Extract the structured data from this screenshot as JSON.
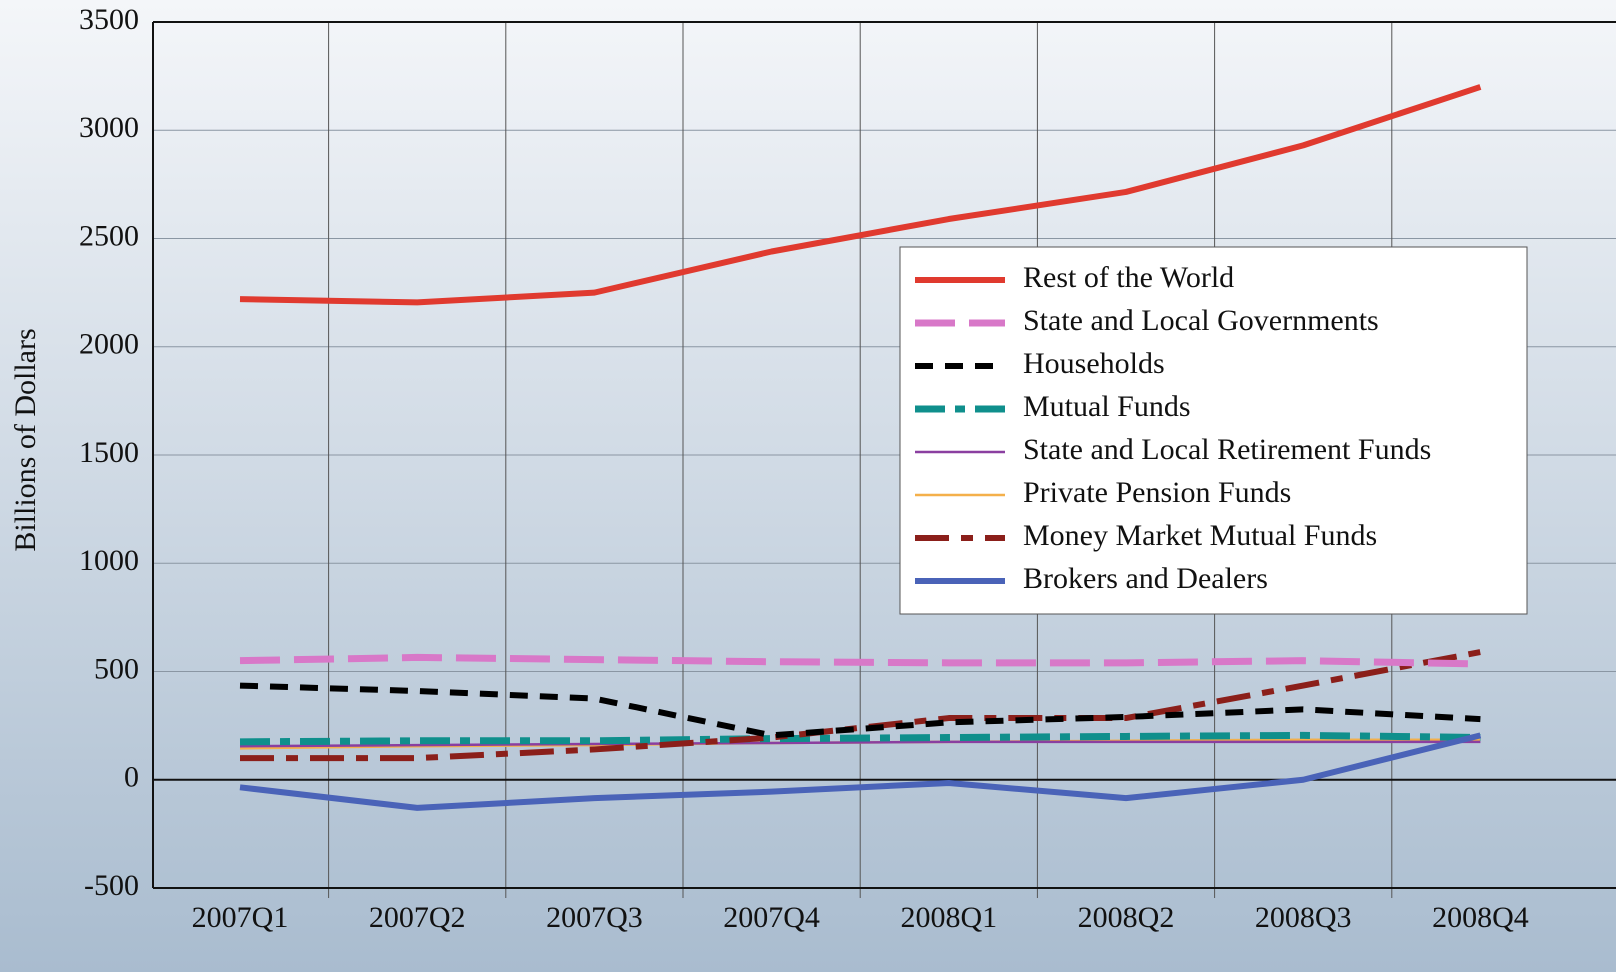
{
  "chart_data": {
    "type": "line",
    "y_label": "Billions of Dollars",
    "categories": [
      "2007Q1",
      "2007Q2",
      "2007Q3",
      "2007Q4",
      "2008Q1",
      "2008Q2",
      "2008Q3",
      "2008Q4"
    ],
    "ylim": [
      -500,
      3500
    ],
    "yticks": [
      -500,
      0,
      500,
      1000,
      1500,
      2000,
      2500,
      3000,
      3500
    ],
    "grid": true,
    "legend": "upper right",
    "series": [
      {
        "name": "Rest of the World",
        "color": "#e03a2f",
        "values": [
          2220,
          2205,
          2250,
          2440,
          2590,
          2715,
          2930,
          3200
        ]
      },
      {
        "name": "State and Local Governments",
        "color": "#d878c8",
        "values": [
          550,
          565,
          555,
          545,
          540,
          540,
          550,
          535
        ]
      },
      {
        "name": "Households",
        "color": "#000000",
        "values": [
          435,
          410,
          375,
          205,
          265,
          290,
          325,
          280
        ]
      },
      {
        "name": "Mutual Funds",
        "color": "#0f8f8c",
        "values": [
          175,
          180,
          180,
          190,
          195,
          200,
          205,
          195
        ]
      },
      {
        "name": "State and Local Retirement Funds",
        "color": "#8a3fa0",
        "values": [
          155,
          160,
          165,
          170,
          175,
          175,
          175,
          175
        ]
      },
      {
        "name": "Private Pension Funds",
        "color": "#f4b04a",
        "values": [
          145,
          155,
          160,
          170,
          175,
          180,
          185,
          185
        ]
      },
      {
        "name": "Money Market Mutual Funds",
        "color": "#8b1f1a",
        "values": [
          100,
          100,
          140,
          195,
          285,
          285,
          435,
          590
        ]
      },
      {
        "name": "Brokers and Dealers",
        "color": "#4a63b8",
        "values": [
          -35,
          -130,
          -85,
          -55,
          -15,
          -85,
          0,
          205
        ]
      }
    ]
  }
}
